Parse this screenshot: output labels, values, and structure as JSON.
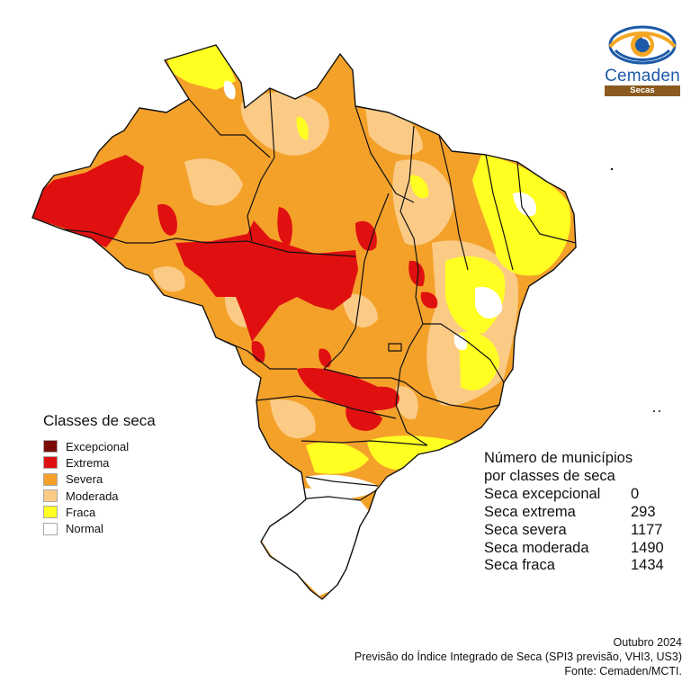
{
  "legend": {
    "title": "Classes de seca",
    "items": [
      {
        "label": "Excepcional",
        "color": "#7b0a06"
      },
      {
        "label": "Extrema",
        "color": "#e01010"
      },
      {
        "label": "Severa",
        "color": "#f4a12a"
      },
      {
        "label": "Moderada",
        "color": "#fbcb86"
      },
      {
        "label": "Fraca",
        "color": "#ffff22"
      },
      {
        "label": "Normal",
        "color": "#ffffff"
      }
    ]
  },
  "stats": {
    "title_line1": "Número de municípios",
    "title_line2": "por classes de seca",
    "rows": [
      {
        "label": "Seca excepcional",
        "value": "0"
      },
      {
        "label": "Seca extrema",
        "value": "293"
      },
      {
        "label": "Seca severa",
        "value": "1177"
      },
      {
        "label": "Seca moderada",
        "value": "1490"
      },
      {
        "label": "Seca fraca",
        "value": "1434"
      }
    ]
  },
  "footer": {
    "date": "Outubro 2024",
    "description": "Previsão do Índice Integrado de Seca (SPI3 previsão, VHI3, US3)",
    "source": "Fonte: Cemaden/MCTI."
  },
  "logo": {
    "name": "Cemaden",
    "subtitle": "Secas"
  }
}
